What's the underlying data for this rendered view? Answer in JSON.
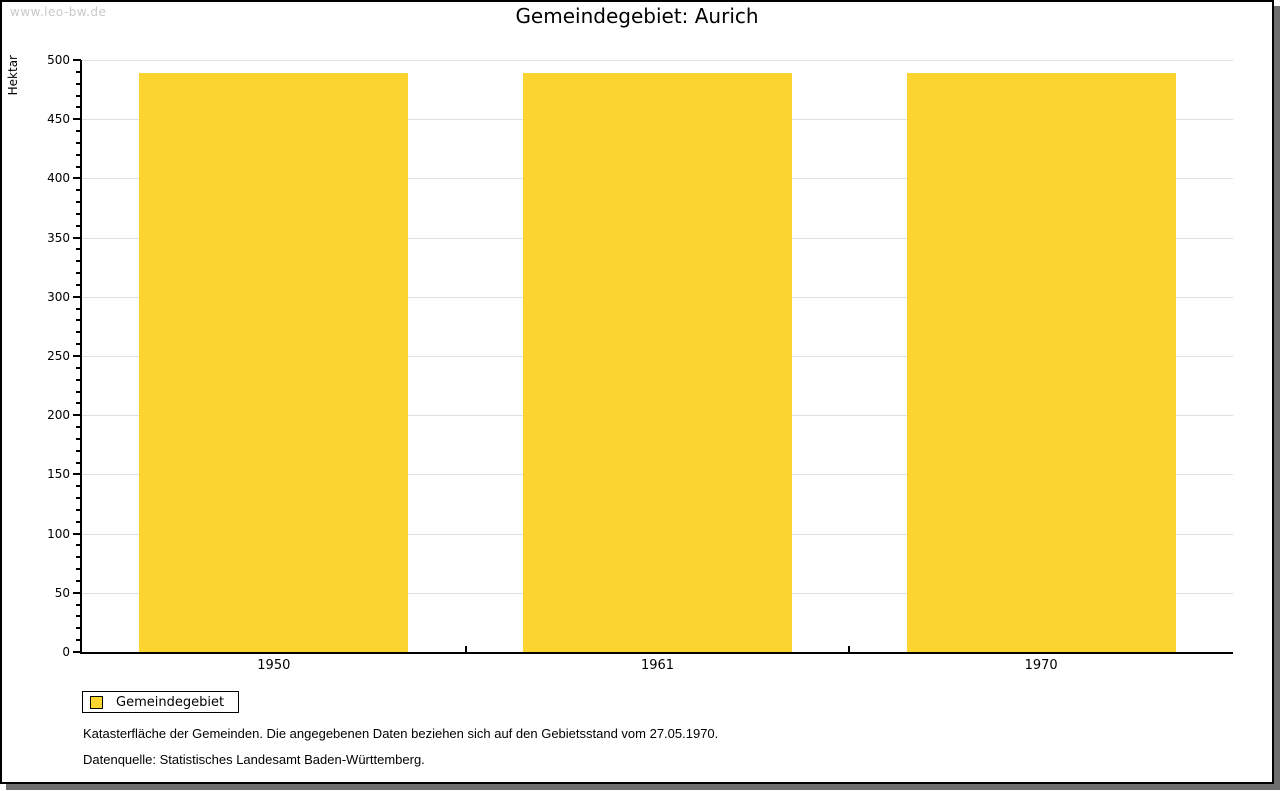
{
  "watermark": "www.leo-bw.de",
  "chart_data": {
    "type": "bar",
    "title": "Gemeindegebiet: Aurich",
    "ylabel": "Hektar",
    "xlabel": "",
    "categories": [
      "1950",
      "1961",
      "1970"
    ],
    "series": [
      {
        "name": "Gemeindegebiet",
        "values": [
          489,
          489,
          489
        ]
      }
    ],
    "ylim": [
      0,
      500
    ],
    "ytick_step": 50,
    "yminor_step": 10,
    "grid": true,
    "legend_position": "bottom-left",
    "bar_color": "#fcd42f",
    "grid_color": "#e0e0e0"
  },
  "legend": {
    "label": "Gemeindegebiet",
    "swatch_color": "#fcd42f"
  },
  "footnotes": [
    "Katasterfläche der Gemeinden. Die angegebenen Daten beziehen sich auf den Gebietsstand vom 27.05.1970.",
    "Datenquelle: Statistisches Landesamt Baden-Württemberg."
  ]
}
